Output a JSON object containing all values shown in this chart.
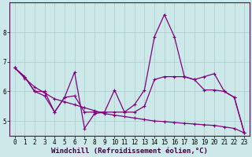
{
  "title": "",
  "xlabel": "Windchill (Refroidissement éolien,°C)",
  "background_color": "#cce8e8",
  "line_color": "#800080",
  "grid_color": "#aacccc",
  "axis_color": "#660066",
  "x_values": [
    0,
    1,
    2,
    3,
    4,
    5,
    6,
    7,
    8,
    9,
    10,
    11,
    12,
    13,
    14,
    15,
    16,
    17,
    18,
    19,
    20,
    21,
    22,
    23
  ],
  "line1": [
    6.8,
    6.5,
    6.0,
    5.85,
    5.3,
    5.8,
    6.65,
    4.75,
    5.25,
    5.3,
    6.05,
    5.3,
    5.55,
    6.05,
    7.85,
    8.6,
    7.85,
    6.5,
    6.4,
    6.5,
    6.6,
    6.0,
    5.8,
    4.6
  ],
  "line2": [
    6.8,
    6.5,
    6.0,
    6.0,
    5.3,
    5.8,
    5.85,
    5.3,
    5.3,
    5.3,
    5.3,
    5.3,
    5.3,
    5.5,
    6.4,
    6.5,
    6.5,
    6.5,
    6.4,
    6.05,
    6.05,
    6.0,
    5.8,
    4.6
  ],
  "line3": [
    6.8,
    6.45,
    6.15,
    5.95,
    5.75,
    5.65,
    5.55,
    5.45,
    5.35,
    5.25,
    5.2,
    5.15,
    5.1,
    5.05,
    5.0,
    4.98,
    4.95,
    4.92,
    4.9,
    4.87,
    4.85,
    4.8,
    4.75,
    4.6
  ],
  "ylim": [
    4.5,
    9.0
  ],
  "yticks": [
    5,
    6,
    7,
    8
  ],
  "xticks": [
    0,
    1,
    2,
    3,
    4,
    5,
    6,
    7,
    8,
    9,
    10,
    11,
    12,
    13,
    14,
    15,
    16,
    17,
    18,
    19,
    20,
    21,
    22,
    23
  ],
  "tick_fontsize": 5.5,
  "xlabel_fontsize": 6.5,
  "lw": 0.9,
  "marker_size": 3.0,
  "marker_ew": 0.8
}
